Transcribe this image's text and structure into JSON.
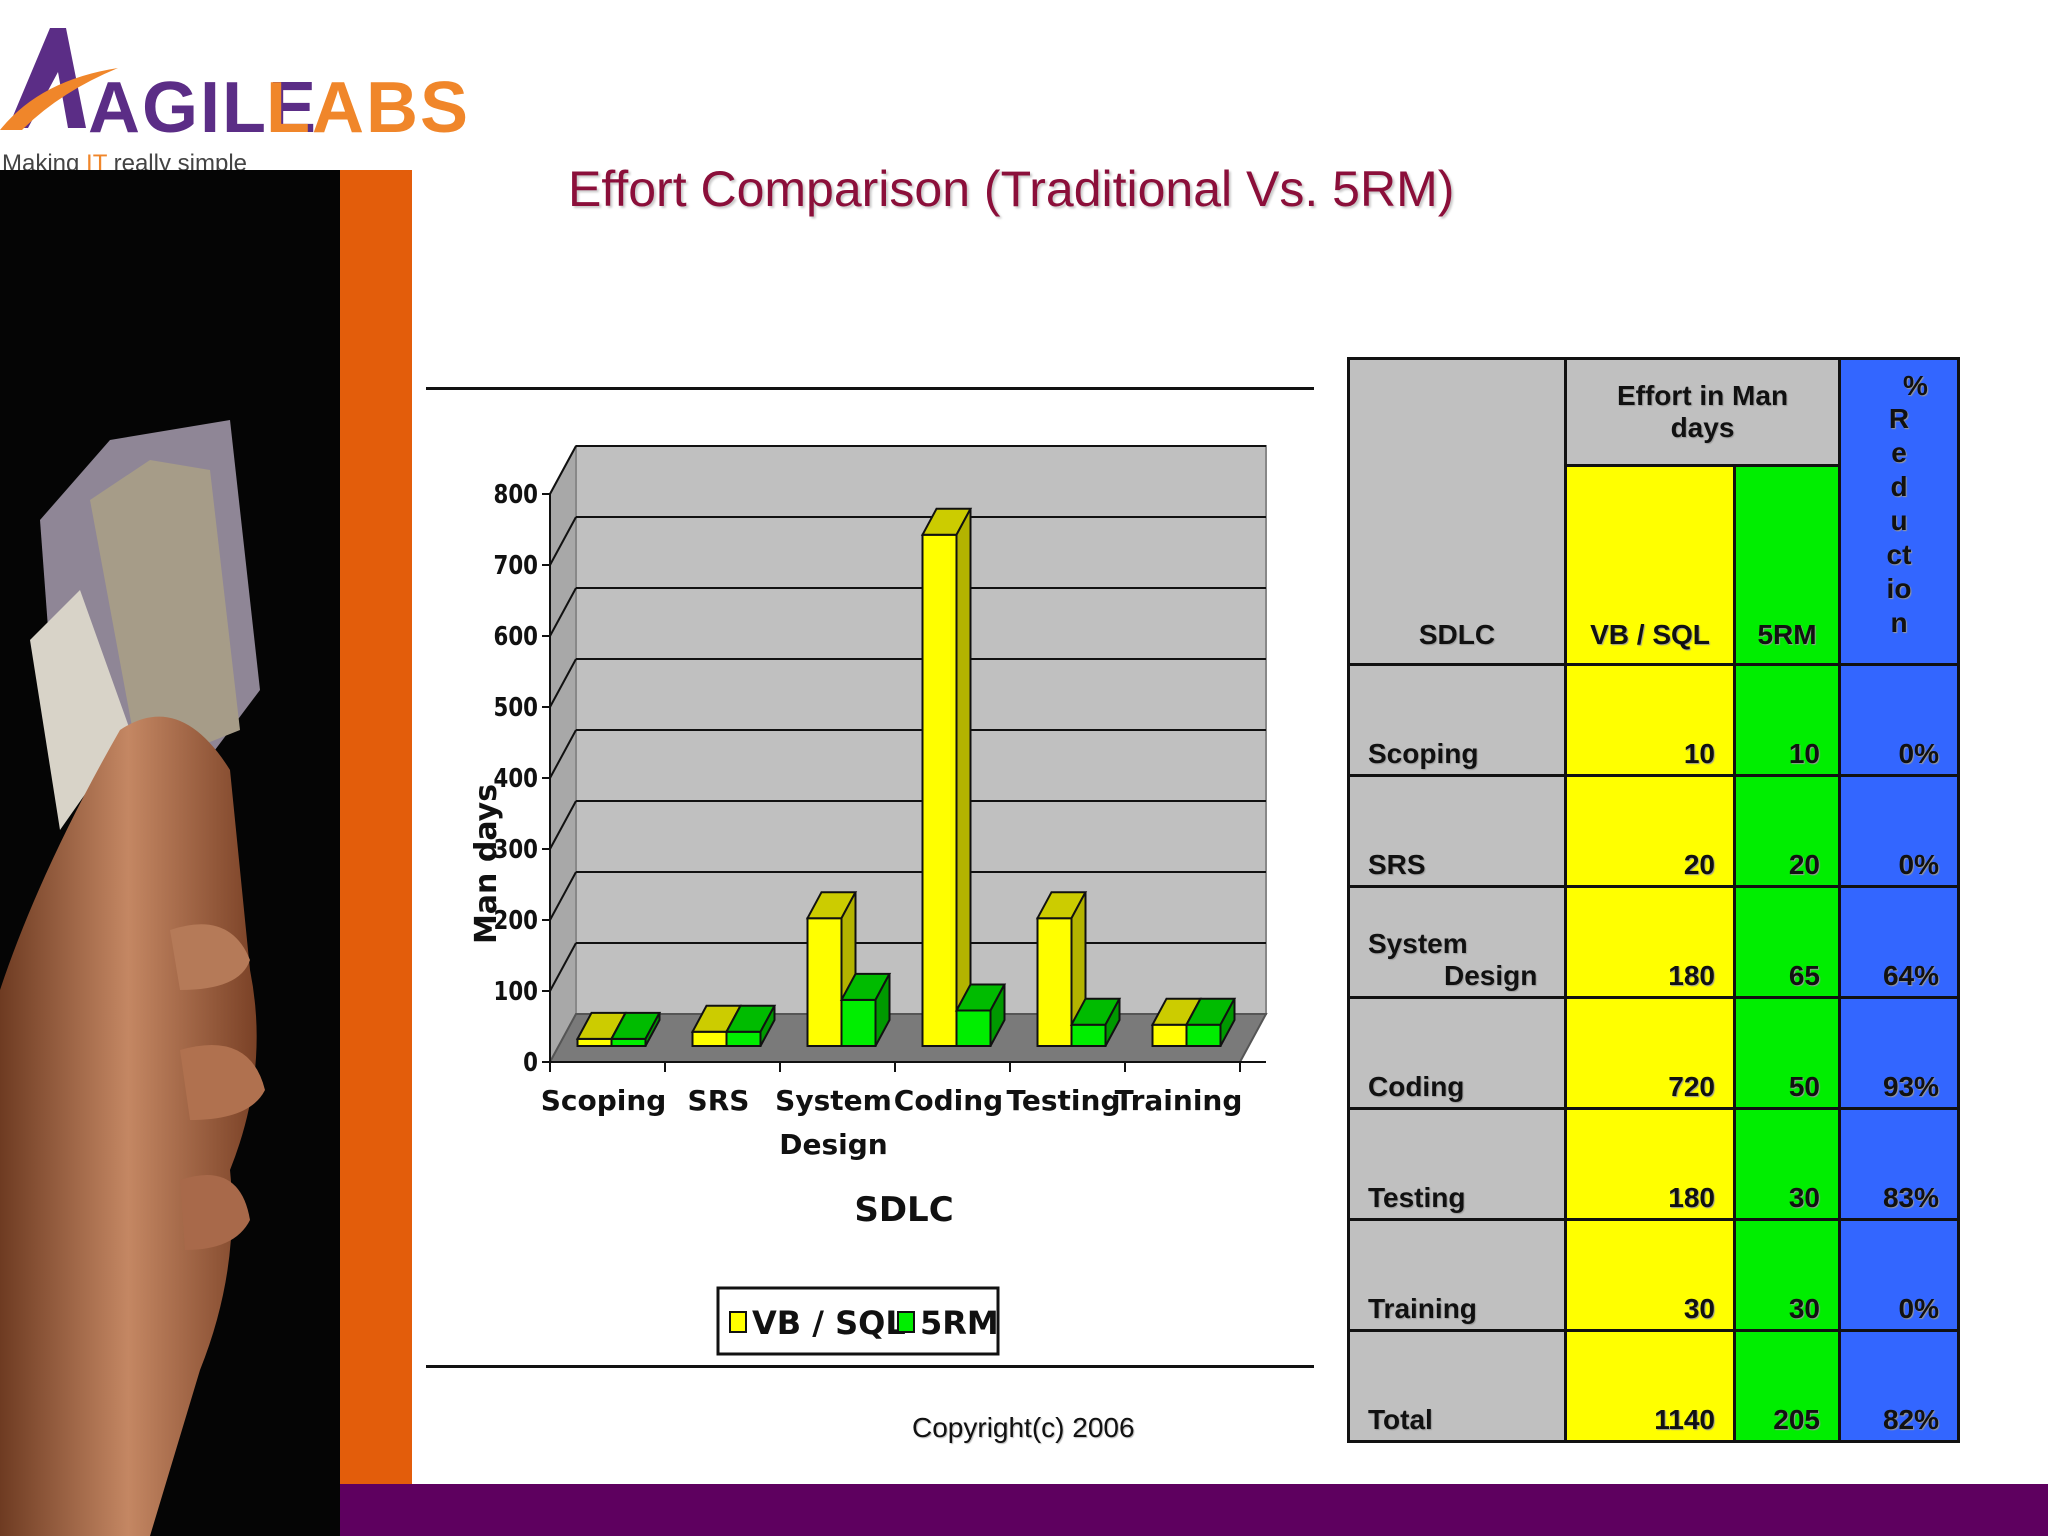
{
  "logo": {
    "brand_a": "AGILE",
    "brand_b": "LABS",
    "tagline_pre": "Making ",
    "tagline_it": "IT",
    "tagline_post": " really simple"
  },
  "title": "Effort Comparison (Traditional Vs. 5RM)",
  "copyright": "Copyright(c) 2006",
  "colors": {
    "vb": "#ffff00",
    "rm": "#00ee00",
    "reduction": "#3366ff",
    "title": "#8b0f3a",
    "accent_orange": "#e35d0b",
    "accent_purple": "#5e005f"
  },
  "chart_data": {
    "type": "bar",
    "title": "",
    "categories": [
      "Scoping",
      "SRS",
      "System Design",
      "Coding",
      "Testing",
      "Training"
    ],
    "category_lines": [
      [
        "Scoping"
      ],
      [
        "SRS"
      ],
      [
        "System",
        "Design"
      ],
      [
        "Coding"
      ],
      [
        "Testing"
      ],
      [
        "Training"
      ]
    ],
    "series": [
      {
        "name": "VB / SQL",
        "values": [
          10,
          20,
          180,
          720,
          180,
          30
        ]
      },
      {
        "name": "5RM",
        "values": [
          10,
          20,
          65,
          50,
          30,
          30
        ]
      }
    ],
    "xlabel": "SDLC",
    "ylabel": "Man days",
    "ylim": [
      0,
      800
    ],
    "yticks": [
      0,
      100,
      200,
      300,
      400,
      500,
      600,
      700,
      800
    ],
    "grid": true,
    "legend": "bottom"
  },
  "table": {
    "header_sdlc": "SDLC",
    "header_effort": "Effort in Man days",
    "header_vb": "VB / SQL",
    "header_rm": "5RM",
    "header_pct": "% Reduction",
    "header_pct_lines": "R\ne\nd\nu\nct\nio\nn",
    "header_pct_symbol": "%",
    "rows": [
      {
        "sdlc": "Scoping",
        "vb": "10",
        "rm": "10",
        "pct": "0%"
      },
      {
        "sdlc": "SRS",
        "vb": "20",
        "rm": "20",
        "pct": "0%"
      },
      {
        "sdlc_a": "System",
        "sdlc_b": "Design",
        "vb": "180",
        "rm": "65",
        "pct": "64%"
      },
      {
        "sdlc": "Coding",
        "vb": "720",
        "rm": "50",
        "pct": "93%"
      },
      {
        "sdlc": "Testing",
        "vb": "180",
        "rm": "30",
        "pct": "83%"
      },
      {
        "sdlc": "Training",
        "vb": "30",
        "rm": "30",
        "pct": "0%"
      },
      {
        "sdlc": "Total",
        "vb": "1140",
        "rm": "205",
        "pct": "82%"
      }
    ]
  }
}
